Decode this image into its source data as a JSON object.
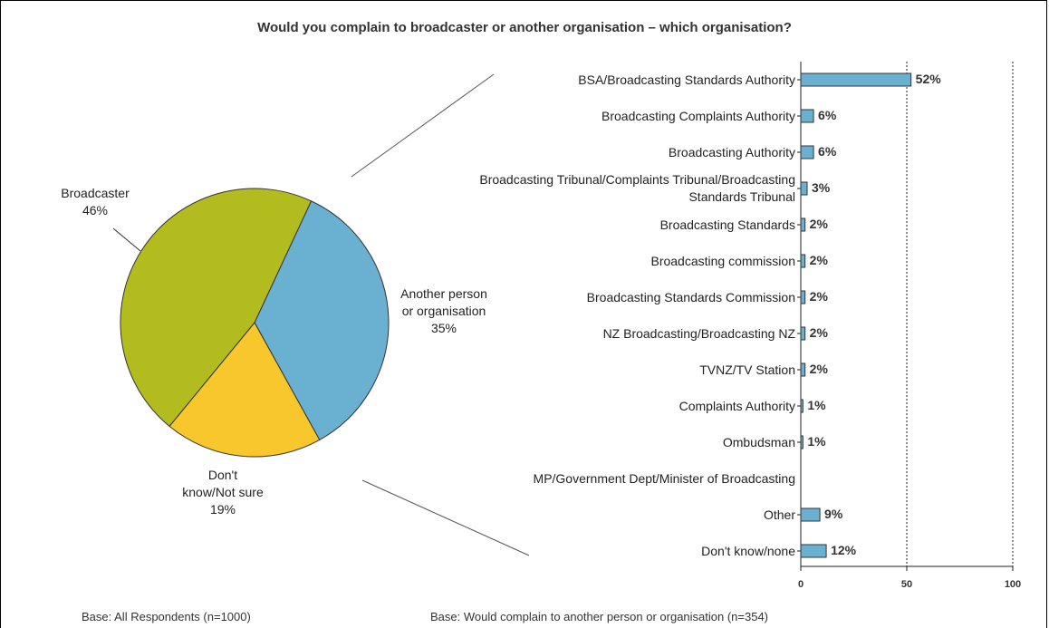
{
  "title": "Would you complain to broadcaster or another organisation – which organisation?",
  "chart_data": [
    {
      "type": "pie",
      "categories": [
        "Another person or organisation",
        "Don't know/Not sure",
        "Broadcaster"
      ],
      "values": [
        35,
        19,
        46
      ],
      "value_labels": [
        "35%",
        "19%",
        "46%"
      ],
      "colors": [
        "#6ab0d0",
        "#f8c72b",
        "#b3bc1f"
      ],
      "note": "Base: All Respondents (n=1000)"
    },
    {
      "type": "hbar",
      "categories": [
        "BSA/Broadcasting Standards Authority",
        "Broadcasting Complaints Authority",
        "Broadcasting Authority",
        "Broadcasting Tribunal/Complaints Tribunal/Broadcasting Standards Tribunal",
        "Broadcasting Standards",
        "Broadcasting commission",
        "Broadcasting Standards Commission",
        "NZ Broadcasting/Broadcasting NZ",
        "TVNZ/TV Station",
        "Complaints Authority",
        "Ombudsman",
        "MP/Government Dept/Minister of Broadcasting",
        "Other",
        "Don't know/none"
      ],
      "values": [
        52,
        6,
        6,
        3,
        2,
        2,
        2,
        2,
        2,
        1,
        1,
        null,
        9,
        12
      ],
      "value_labels": [
        "52%",
        "6%",
        "6%",
        "3%",
        "2%",
        "2%",
        "2%",
        "2%",
        "2%",
        "1%",
        "1%",
        null,
        "9%",
        "12%"
      ],
      "color": "#6ab0d0",
      "xlim": [
        0,
        100
      ],
      "xticks": [
        0,
        50,
        100
      ],
      "grid": true,
      "note": "Base: Would complain to another person or organisation (n=354)"
    }
  ]
}
